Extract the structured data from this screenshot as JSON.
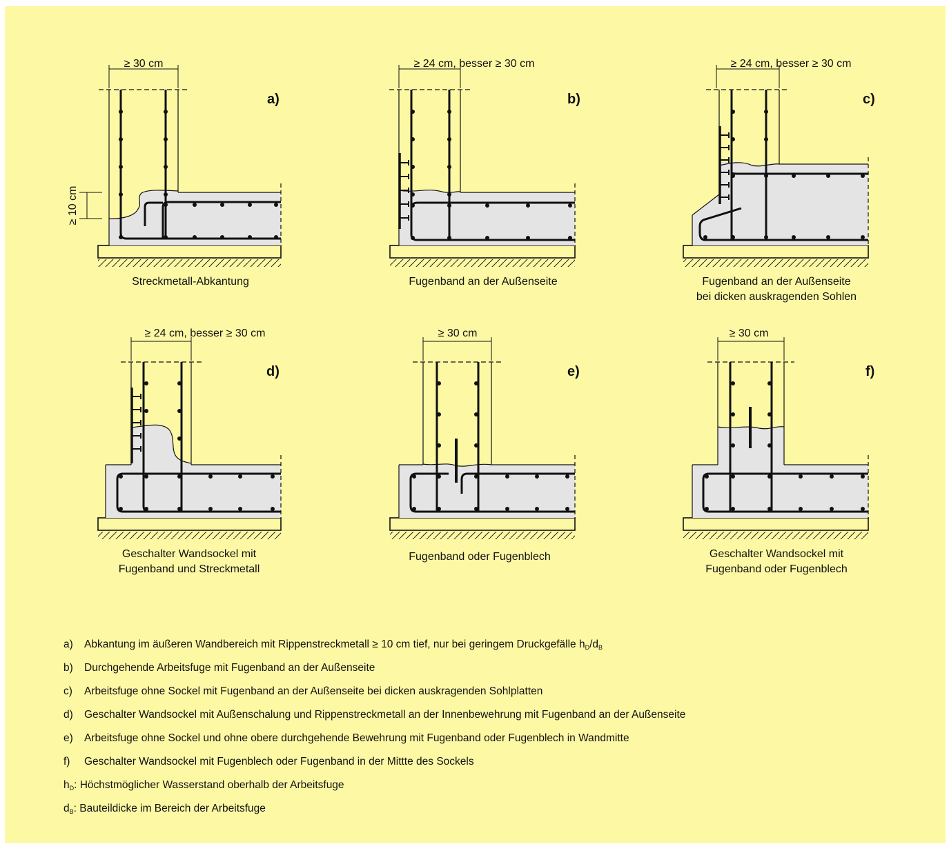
{
  "panels": [
    {
      "id": "a",
      "tag": "a)",
      "dimension": "≥ 30 cm",
      "caption": [
        "Streckmetall-Abkantung"
      ],
      "side_dimension": "≥ 10 cm"
    },
    {
      "id": "b",
      "tag": "b)",
      "dimension": "≥ 24 cm, besser ≥ 30 cm",
      "caption": [
        "Fugenband an der Außenseite"
      ]
    },
    {
      "id": "c",
      "tag": "c)",
      "dimension": "≥ 24 cm, besser ≥ 30 cm",
      "caption": [
        "Fugenband an der Außenseite",
        "bei dicken auskragenden Sohlen"
      ]
    },
    {
      "id": "d",
      "tag": "d)",
      "dimension": "≥ 24 cm, besser ≥ 30 cm",
      "caption": [
        "Geschalter Wandsockel mit",
        "Fugenband und Streckmetall"
      ]
    },
    {
      "id": "e",
      "tag": "e)",
      "dimension": "≥ 30 cm",
      "caption": [
        "Fugenband oder Fugenblech"
      ]
    },
    {
      "id": "f",
      "tag": "f)",
      "dimension": "≥ 30 cm",
      "caption": [
        "Geschalter Wandsockel mit",
        "Fugenband oder Fugenblech"
      ]
    }
  ],
  "legend": [
    {
      "key": "a)",
      "text": "Abkantung im äußeren Wandbereich mit Rippenstreckmetall ≥ 10 cm tief, nur bei geringem Druckgefälle h",
      "sub1": "D",
      "text2": "/d",
      "sub2": "B"
    },
    {
      "key": "b)",
      "text": "Durchgehende Arbeitsfuge mit Fugenband an der Außenseite"
    },
    {
      "key": "c)",
      "text": "Arbeitsfuge ohne Sockel mit Fugenband an der Außenseite bei dicken auskragenden Sohlplatten"
    },
    {
      "key": "d)",
      "text": "Geschalter Wandsockel mit Außenschalung und Rippenstreckmetall an der Innenbewehrung mit Fugenband an der Außenseite"
    },
    {
      "key": "e)",
      "text": "Arbeitsfuge ohne Sockel und ohne obere durchgehende Bewehrung mit Fugenband oder Fugenblech in Wandmitte"
    },
    {
      "key": "f)",
      "text": "Geschalter Wandsockel mit Fugenblech oder Fugenband in der Mittte des Sockels"
    }
  ],
  "definitions": [
    {
      "symbol": "h",
      "sub": "D",
      "text": ": Höchstmöglicher Wasserstand oberhalb der Arbeitsfuge"
    },
    {
      "symbol": "d",
      "sub": "B",
      "text": ": Bauteildicke im Bereich der Arbeitsfuge"
    }
  ],
  "colors": {
    "background": "#fdf8a4",
    "concrete": "#e4e4e4",
    "line": "#111111"
  }
}
